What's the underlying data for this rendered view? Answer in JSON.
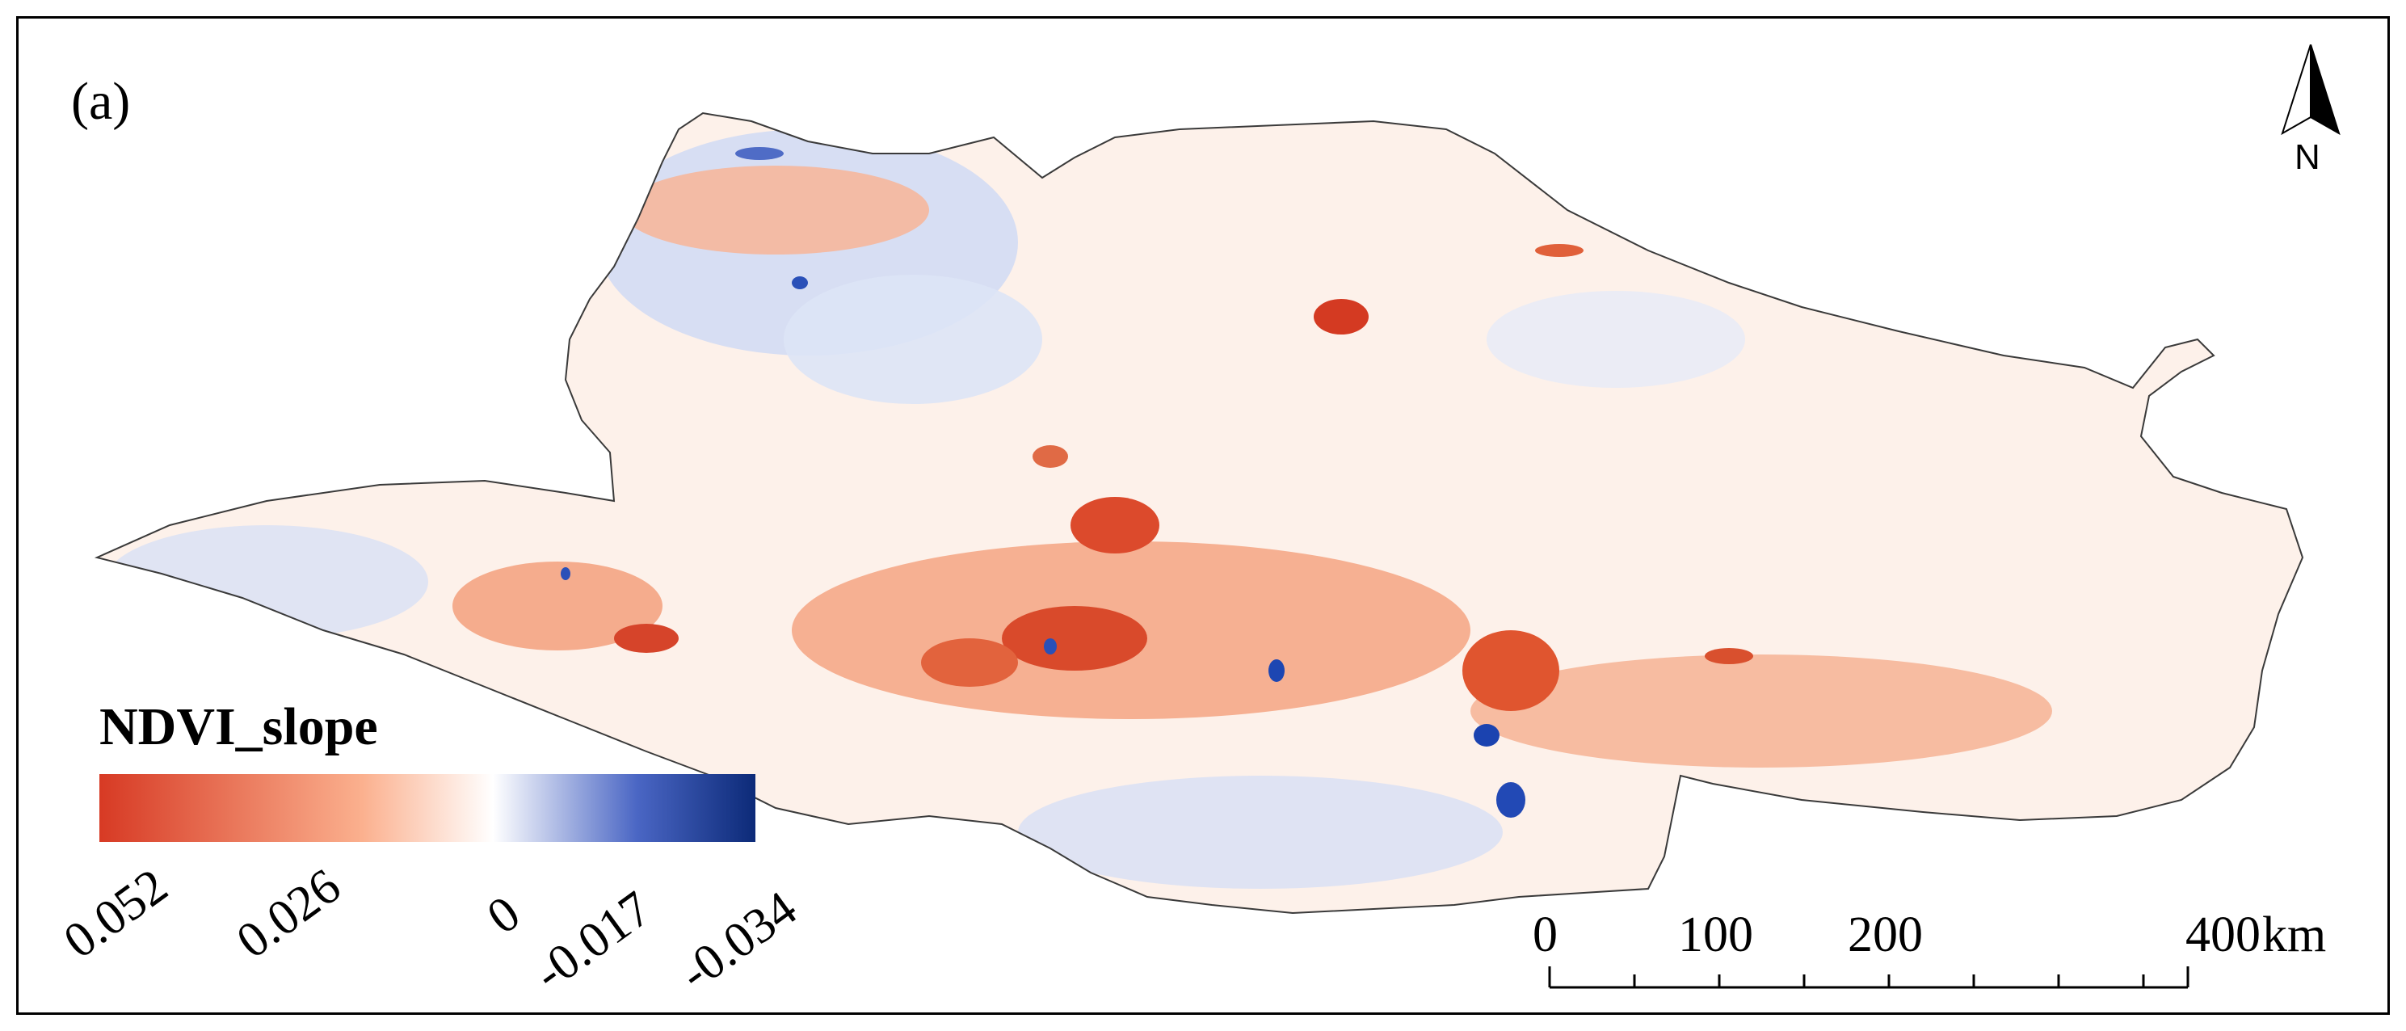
{
  "panel_label": "(a)",
  "legend": {
    "title": "NDVI_slope",
    "tick_labels": [
      "0.052",
      "0.026",
      "0",
      "-0.017",
      "-0.034"
    ],
    "gradient_colors": [
      "#d73a24",
      "#fbb08e",
      "#ffffff",
      "#4a66c4",
      "#0c2a78"
    ]
  },
  "north_arrow": {
    "letter": "N"
  },
  "scale_bar": {
    "labels": [
      "0",
      "100",
      "200",
      "400"
    ],
    "unit": "km"
  },
  "colors": {
    "increase_strong": "#d94528",
    "increase_light": "#fde3d6",
    "decrease_light": "#c9d4f2",
    "decrease_strong": "#1b43b0",
    "outline": "#3a3a3a"
  }
}
